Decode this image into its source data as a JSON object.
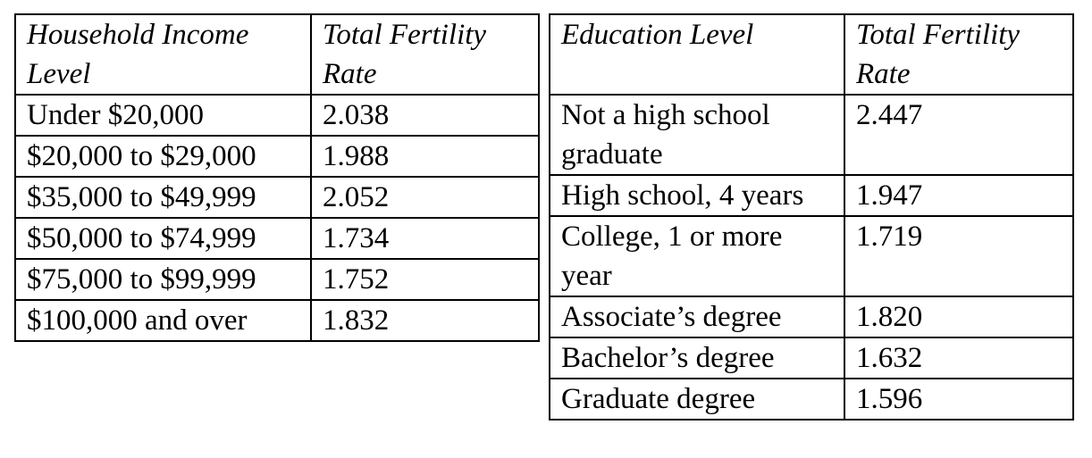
{
  "income_table": {
    "headers": {
      "level": "Household Income Level",
      "rate": "Total Fertility Rate"
    },
    "rows": [
      {
        "level": "Under $20,000",
        "rate": "2.038"
      },
      {
        "level": "$20,000 to $29,000",
        "rate": "1.988"
      },
      {
        "level": "$35,000 to $49,999",
        "rate": "2.052"
      },
      {
        "level": "$50,000 to $74,999",
        "rate": "1.734"
      },
      {
        "level": "$75,000 to $99,999",
        "rate": "1.752"
      },
      {
        "level": "$100,000 and over",
        "rate": "1.832"
      }
    ]
  },
  "education_table": {
    "headers": {
      "level": "Education Level",
      "rate": "Total Fertility Rate"
    },
    "rows": [
      {
        "level": "Not a high school graduate",
        "rate": "2.447"
      },
      {
        "level": "High school, 4 years",
        "rate": "1.947"
      },
      {
        "level": "College, 1 or more year",
        "rate": "1.719"
      },
      {
        "level": "Associate’s degree",
        "rate": "1.820"
      },
      {
        "level": "Bachelor’s degree",
        "rate": "1.632"
      },
      {
        "level": "Graduate degree",
        "rate": "1.596"
      }
    ]
  }
}
